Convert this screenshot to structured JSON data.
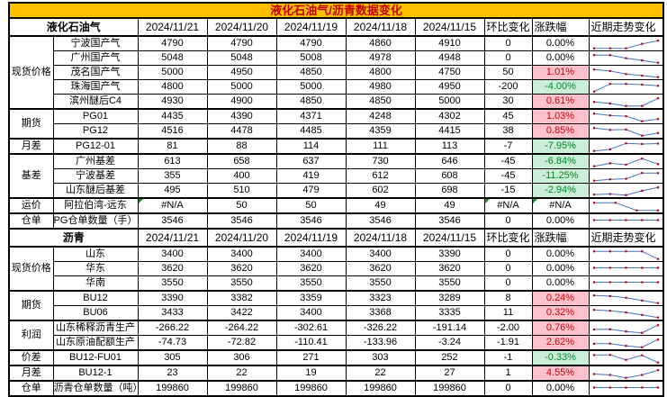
{
  "title": "液化石油气/沥青数据变化",
  "colors": {
    "title_bg": "#FFC000",
    "title_text": "#C00000",
    "up_bg": "#FFC1CB",
    "up_text": "#CC0000",
    "down_bg": "#CBEFD6",
    "down_text": "#00882B",
    "spark_line": "#4472C4",
    "spark_marker": "#C00000",
    "error_triangle": "#1E8A3C"
  },
  "sections": [
    {
      "name": "液化石油气",
      "dates": [
        "2024/11/21",
        "2024/11/20",
        "2024/11/19",
        "2024/11/18",
        "2024/11/15"
      ],
      "extra_headers": [
        "环比变化",
        "涨跌幅",
        "近期走势变化"
      ],
      "groups": [
        {
          "label": "现货价格",
          "rows": [
            {
              "label": "宁波国产气",
              "values": [
                "4790",
                "4790",
                "4790",
                "4860",
                "4910"
              ],
              "change": "0",
              "pct": "0.00%"
            },
            {
              "label": "广州国产气",
              "values": [
                "5048",
                "5048",
                "5008",
                "4978",
                "4948"
              ],
              "change": "0",
              "pct": "0.00%"
            },
            {
              "label": "茂名国产气",
              "values": [
                "5000",
                "4950",
                "4850",
                "4800",
                "4750"
              ],
              "change": "50",
              "pct": "1.01%"
            },
            {
              "label": "珠海国产气",
              "values": [
                "4800",
                "5000",
                "5000",
                "4980",
                "4950"
              ],
              "change": "-200",
              "pct": "-4.00%"
            },
            {
              "label": "滨州醚后C4",
              "values": [
                "4930",
                "4900",
                "4850",
                "4850",
                "5000"
              ],
              "change": "30",
              "pct": "0.61%"
            }
          ]
        },
        {
          "label": "期货",
          "rows": [
            {
              "label": "PG01",
              "values": [
                "4435",
                "4390",
                "4371",
                "4248",
                "4302"
              ],
              "change": "45",
              "pct": "1.03%"
            },
            {
              "label": "PG12",
              "values": [
                "4516",
                "4478",
                "4485",
                "4359",
                "4415"
              ],
              "change": "38",
              "pct": "0.85%"
            }
          ]
        },
        {
          "label": "月差",
          "rows": [
            {
              "label": "PG12-01",
              "values": [
                "81",
                "88",
                "114",
                "111",
                "113"
              ],
              "change": "-7",
              "pct": "-7.95%"
            }
          ]
        },
        {
          "label": "基差",
          "rows": [
            {
              "label": "广州基差",
              "values": [
                "613",
                "658",
                "637",
                "730",
                "646"
              ],
              "change": "-45",
              "pct": "-6.84%"
            },
            {
              "label": "宁波基差",
              "values": [
                "355",
                "400",
                "419",
                "612",
                "608"
              ],
              "change": "-45",
              "pct": "-11.25%"
            },
            {
              "label": "山东醚后基差",
              "values": [
                "495",
                "510",
                "479",
                "602",
                "698"
              ],
              "change": "-15",
              "pct": "-2.94%"
            }
          ]
        },
        {
          "label": "运价",
          "rows": [
            {
              "label": "阿拉伯湾-远东",
              "values": [
                "#N/A",
                "50",
                "50",
                "49",
                "49"
              ],
              "change": "#N/A",
              "pct": "#N/A"
            }
          ]
        },
        {
          "label": "仓单",
          "rows": [
            {
              "label": "PG仓单数量（手）",
              "values": [
                "3546",
                "3546",
                "3546",
                "3546",
                "3546"
              ],
              "change": "0",
              "pct": "0.00%"
            }
          ]
        }
      ]
    },
    {
      "name": "沥青",
      "dates": [
        "2024/11/21",
        "2024/11/20",
        "2024/11/19",
        "2024/11/18",
        "2024/11/15"
      ],
      "extra_headers": [
        "环比变化",
        "涨跌幅",
        "近期走势变化"
      ],
      "groups": [
        {
          "label": "现货价格",
          "rows": [
            {
              "label": "山东",
              "values": [
                "3400",
                "3400",
                "3400",
                "3400",
                "3390"
              ],
              "change": "0",
              "pct": "0.00%"
            },
            {
              "label": "华东",
              "values": [
                "3620",
                "3620",
                "3620",
                "3620",
                "3620"
              ],
              "change": "0",
              "pct": "0.00%"
            },
            {
              "label": "华南",
              "values": [
                "3550",
                "3550",
                "3550",
                "3550",
                "3550"
              ],
              "change": "0",
              "pct": "0.00%"
            }
          ]
        },
        {
          "label": "期货",
          "rows": [
            {
              "label": "BU12",
              "values": [
                "3390",
                "3382",
                "3359",
                "3323",
                "3289"
              ],
              "change": "8",
              "pct": "0.24%"
            },
            {
              "label": "BU06",
              "values": [
                "3433",
                "3422",
                "3400",
                "3368",
                "3335"
              ],
              "change": "11",
              "pct": "0.32%"
            }
          ]
        },
        {
          "label": "利润",
          "rows": [
            {
              "label": "山东稀释沥青生产",
              "values": [
                "-266.22",
                "-264.22",
                "-302.61",
                "-326.22",
                "-191.14"
              ],
              "change": "-2.00",
              "pct": "0.76%"
            },
            {
              "label": "山东原油配额生产",
              "values": [
                "-74.73",
                "-72.82",
                "-110.41",
                "-133.96",
                "-3.24"
              ],
              "change": "-1.91",
              "pct": "2.62%"
            }
          ]
        },
        {
          "label": "价差",
          "rows": [
            {
              "label": "BU12-FU01",
              "values": [
                "305",
                "306",
                "271",
                "303",
                "252"
              ],
              "change": "-1",
              "pct": "-0.33%"
            }
          ]
        },
        {
          "label": "月差",
          "rows": [
            {
              "label": "BU12-1",
              "values": [
                "23",
                "22",
                "19",
                "22",
                "27"
              ],
              "change": "1",
              "pct": "4.55%"
            }
          ]
        },
        {
          "label": "仓单",
          "rows": [
            {
              "label": "沥青仓单数量（吨）",
              "values": [
                "199860",
                "199860",
                "199860",
                "199860",
                "199860"
              ],
              "change": "0",
              "pct": "0.00%"
            }
          ]
        }
      ]
    }
  ]
}
